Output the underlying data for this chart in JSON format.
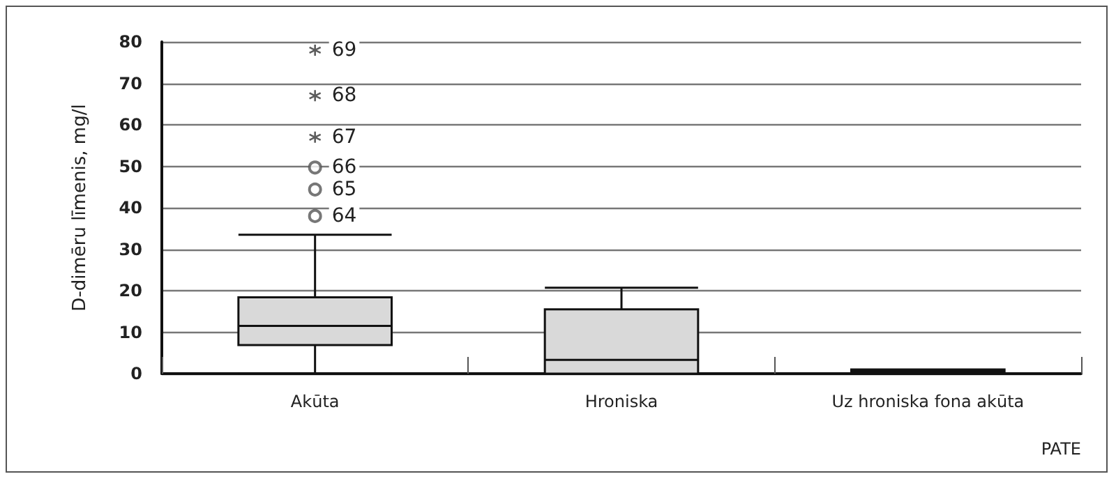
{
  "chart_data": {
    "type": "box",
    "xlabel": "PATE",
    "ylabel": "D-dimēru līmenis, mg/l",
    "categories": [
      "Akūta",
      "Hroniska",
      "Uz hroniska fona akūta"
    ],
    "color": "#d9d9d9",
    "boxes": [
      {
        "low": 0,
        "q1": 6.9,
        "median": 11.5,
        "q3": 18.4,
        "high": 33.5
      },
      {
        "low": 0,
        "q1": 0,
        "median": 3.3,
        "q3": 15.5,
        "high": 20.7
      },
      {
        "low": 0,
        "q1": 0,
        "median": 0.5,
        "q3": 1,
        "high": 1
      }
    ],
    "series": [
      {
        "type": "scatter",
        "x": [
          "Akūta",
          "Akūta",
          "Akūta"
        ],
        "values": [
          38,
          44.4,
          49.7
        ],
        "marker": "circle",
        "color": "#555555"
      },
      {
        "type": "scatter",
        "x": [
          "Akūta",
          "Akūta",
          "Akūta"
        ],
        "values": [
          57,
          67,
          78
        ],
        "marker": "cross",
        "color": "#333333"
      }
    ],
    "annotations": [
      {
        "text": "64",
        "x": "Akūta",
        "y": 38
      },
      {
        "text": "65",
        "x": "Akūta",
        "y": 44.4
      },
      {
        "text": "66",
        "x": "Akūta",
        "y": 49.7
      },
      {
        "text": "67",
        "x": "Akūta",
        "y": 57
      },
      {
        "text": "68",
        "x": "Akūta",
        "y": 67
      },
      {
        "text": "69",
        "x": "Akūta",
        "y": 78
      }
    ],
    "ylim": [
      0,
      80
    ],
    "yticks": [
      0,
      10,
      20,
      30,
      40,
      50,
      60,
      70,
      80
    ],
    "grid": "y"
  }
}
